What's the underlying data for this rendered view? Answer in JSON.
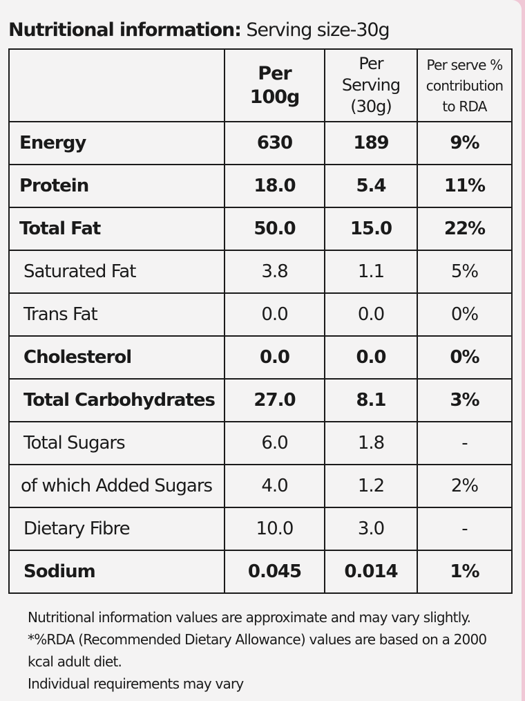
{
  "heading": {
    "bold": "Nutritional information:",
    "rest": " Serving size-30g"
  },
  "columns": {
    "per100": [
      "Per",
      "100g"
    ],
    "serving": [
      "Per",
      "Serving",
      "(30g)"
    ],
    "rda": [
      "Per serve %",
      "contribution",
      "to RDA"
    ]
  },
  "rows": [
    {
      "name": "Energy",
      "per100": "630",
      "serving": "189",
      "rda": "9%"
    },
    {
      "name": "Protein",
      "per100": "18.0",
      "serving": "5.4",
      "rda": "11%"
    },
    {
      "name": "Total Fat",
      "per100": "50.0",
      "serving": "15.0",
      "rda": "22%"
    },
    {
      "name": "Saturated Fat",
      "per100": "3.8",
      "serving": "1.1",
      "rda": "5%"
    },
    {
      "name": "Trans Fat",
      "per100": "0.0",
      "serving": "0.0",
      "rda": "0%"
    },
    {
      "name": "Cholesterol",
      "per100": "0.0",
      "serving": "0.0",
      "rda": "0%"
    },
    {
      "name": "Total Carbohydrates",
      "per100": "27.0",
      "serving": "8.1",
      "rda": "3%"
    },
    {
      "name": "Total Sugars",
      "per100": "6.0",
      "serving": "1.8",
      "rda": "-"
    },
    {
      "name": "of which Added Sugars",
      "per100": "4.0",
      "serving": "1.2",
      "rda": "2%"
    },
    {
      "name": "Dietary Fibre",
      "per100": "10.0",
      "serving": "3.0",
      "rda": "-"
    },
    {
      "name": "Sodium",
      "per100": "0.045",
      "serving": "0.014",
      "rda": "1%"
    }
  ],
  "notes": {
    "line1": "Nutritional information values are approximate and may vary slightly.",
    "line2": "*%RDA (Recommended Dietary Allowance) values are based on a 2000 kcal adult diet.",
    "line3": "Individual requirements may vary"
  },
  "colors": {
    "background": "#f0c8d6",
    "label": "#f4f3f3",
    "ink": "#1a1a1a"
  }
}
